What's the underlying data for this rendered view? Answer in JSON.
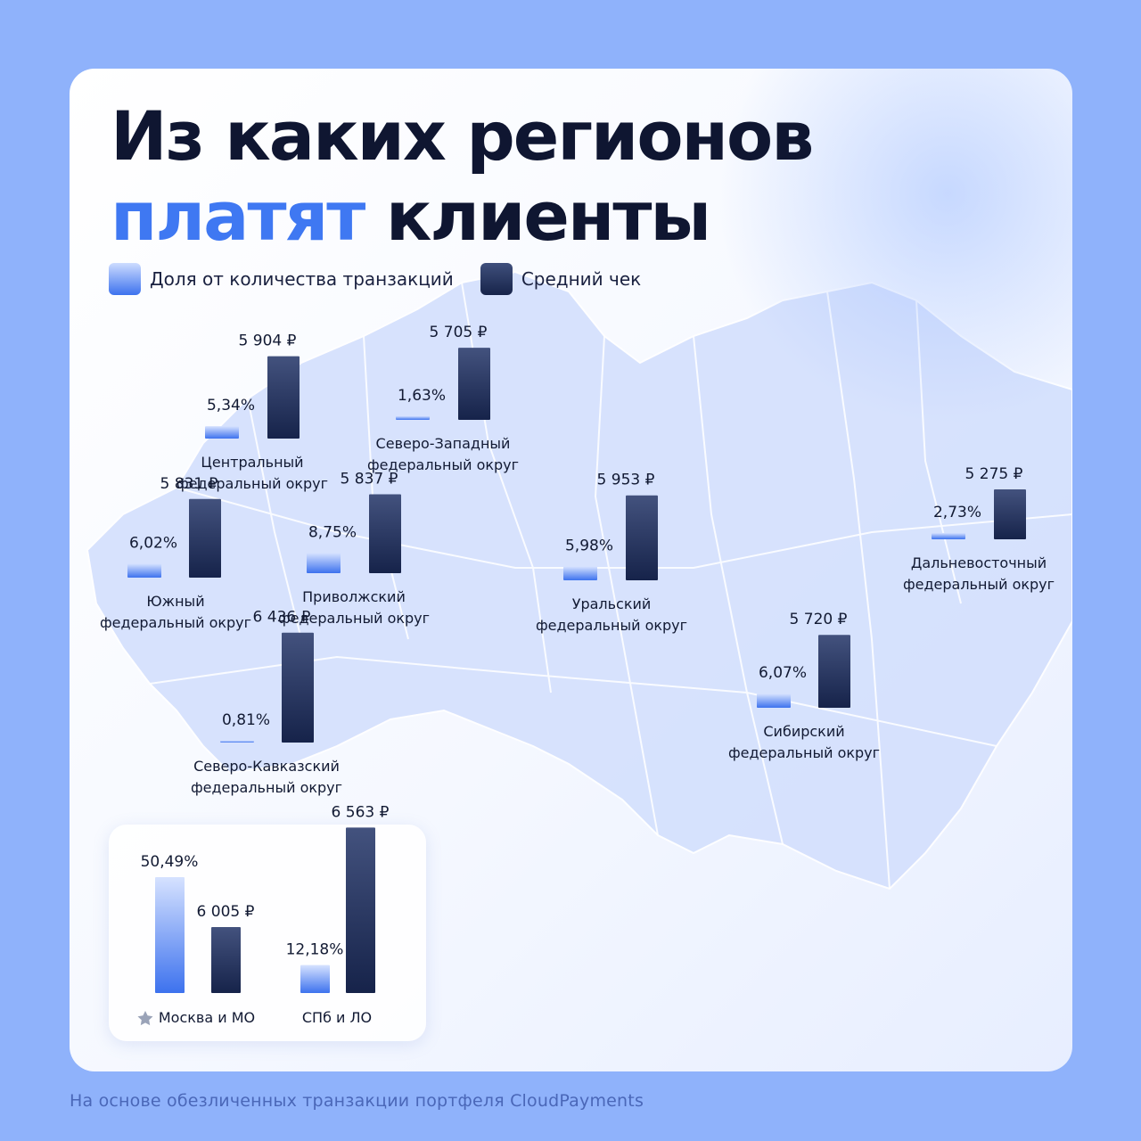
{
  "title": {
    "line1": "Из каких регионов",
    "line2_accent": "платят",
    "line2_rest": "клиенты"
  },
  "legend": [
    {
      "label": "Доля от количества транзакций"
    },
    {
      "label": "Средний чек"
    }
  ],
  "chart_data": {
    "type": "bar",
    "title": "Из каких регионов платят клиенты",
    "series": [
      {
        "name": "Доля от количества транзакций",
        "unit": "%"
      },
      {
        "name": "Средний чек",
        "unit": "₽"
      }
    ],
    "regions": [
      {
        "name_line1": "Центральный",
        "name_line2": "федеральный округ",
        "share": 5.34,
        "share_label": "5,34%",
        "avg_check": 5904,
        "avg_check_label": "5 904 ₽"
      },
      {
        "name_line1": "Северо-Западный",
        "name_line2": "федеральный округ",
        "share": 1.63,
        "share_label": "1,63%",
        "avg_check": 5705,
        "avg_check_label": "5 705 ₽"
      },
      {
        "name_line1": "Южный",
        "name_line2": "федеральный округ",
        "share": 6.02,
        "share_label": "6,02%",
        "avg_check": 5831,
        "avg_check_label": "5 831 ₽"
      },
      {
        "name_line1": "Приволжский",
        "name_line2": "федеральный округ",
        "share": 8.75,
        "share_label": "8,75%",
        "avg_check": 5837,
        "avg_check_label": "5 837 ₽"
      },
      {
        "name_line1": "Уральский",
        "name_line2": "федеральный округ",
        "share": 5.98,
        "share_label": "5,98%",
        "avg_check": 5953,
        "avg_check_label": "5 953 ₽"
      },
      {
        "name_line1": "Дальневосточный",
        "name_line2": "федеральный округ",
        "share": 2.73,
        "share_label": "2,73%",
        "avg_check": 5275,
        "avg_check_label": "5 275 ₽"
      },
      {
        "name_line1": "Северо-Кавказский",
        "name_line2": "федеральный округ",
        "share": 0.81,
        "share_label": "0,81%",
        "avg_check": 6436,
        "avg_check_label": "6 436 ₽"
      },
      {
        "name_line1": "Сибирский",
        "name_line2": "федеральный округ",
        "share": 6.07,
        "share_label": "6,07%",
        "avg_check": 5720,
        "avg_check_label": "5 720 ₽"
      }
    ],
    "cities": [
      {
        "name": "Москва и МО",
        "starred": true,
        "share": 50.49,
        "share_label": "50,49%",
        "avg_check": 6005,
        "avg_check_label": "6 005 ₽"
      },
      {
        "name": "СПб и ЛО",
        "starred": false,
        "share": 12.18,
        "share_label": "12,18%",
        "avg_check": 6563,
        "avg_check_label": "6 563 ₽"
      }
    ]
  },
  "colors": {
    "background": "#8fb2fb",
    "accent": "#3f78f2",
    "share_bar": "#3d72ee",
    "check_bar": "#17244a",
    "map_fill": "#d4e0fd",
    "footnote": "#4a67b8"
  },
  "icons": {
    "city_marker": "star-icon"
  },
  "footnote": "На основе обезличенных транзакции портфеля CloudPayments"
}
